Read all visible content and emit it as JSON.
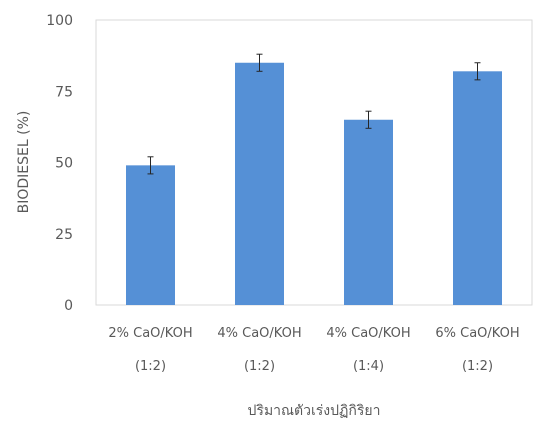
{
  "chart_data": {
    "type": "bar",
    "categories": [
      [
        "2% CaO/KOH",
        "(1:2)"
      ],
      [
        "4% CaO/KOH",
        "(1:2)"
      ],
      [
        "4% CaO/KOH",
        "(1:4)"
      ],
      [
        "6% CaO/KOH",
        "(1:2)"
      ]
    ],
    "values": [
      49,
      85,
      65,
      82
    ],
    "error": [
      3,
      3,
      3,
      3
    ],
    "ylim": [
      0,
      100
    ],
    "yticks": [
      0,
      25,
      50,
      75,
      100
    ],
    "xlabel": "ปริมาณตัวเร่งปฏิกิริยา",
    "ylabel": "BIODIESEL (%)",
    "colors": {
      "bar": "#5590d6",
      "error": "#262626",
      "axis": "#d9d9d9"
    },
    "grid": false,
    "legend": "none"
  }
}
